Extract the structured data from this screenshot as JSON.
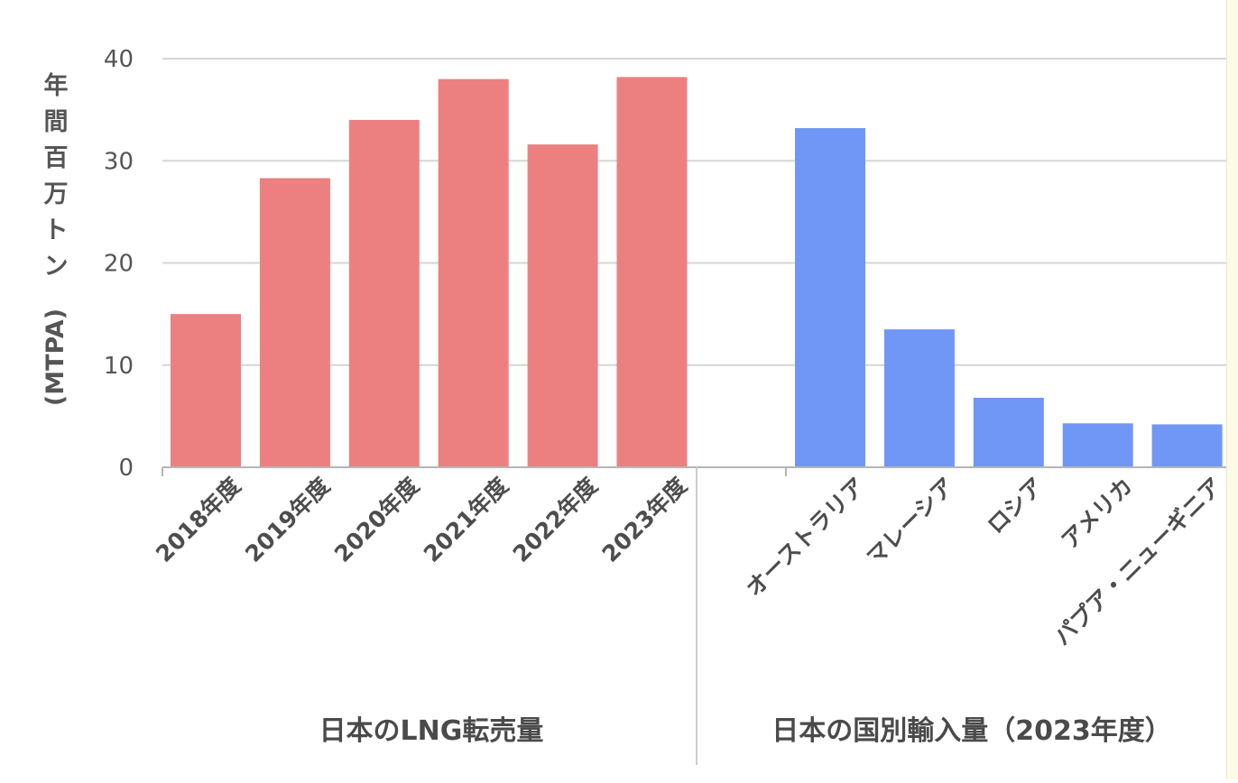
{
  "chart_data": {
    "type": "bar",
    "ylabel": "年間百万トン（MTPA）",
    "ylim": [
      0,
      40
    ],
    "yticks": [
      0,
      10,
      20,
      30,
      40
    ],
    "grid": true,
    "groups": [
      {
        "title": "日本のLNG転売量",
        "color": "#ec8080",
        "categories": [
          "2018年度",
          "2019年度",
          "2020年度",
          "2021年度",
          "2022年度",
          "2023年度"
        ],
        "values": [
          15.0,
          28.3,
          34.0,
          38.0,
          31.6,
          38.2
        ]
      },
      {
        "title": "日本の国別輸入量（2023年度）",
        "color": "#7097f5",
        "categories": [
          "オーストラリア",
          "マレーシア",
          "ロシア",
          "アメリカ",
          "パプア・ニューギニア"
        ],
        "values": [
          33.2,
          13.5,
          6.8,
          4.3,
          4.2
        ]
      }
    ]
  }
}
